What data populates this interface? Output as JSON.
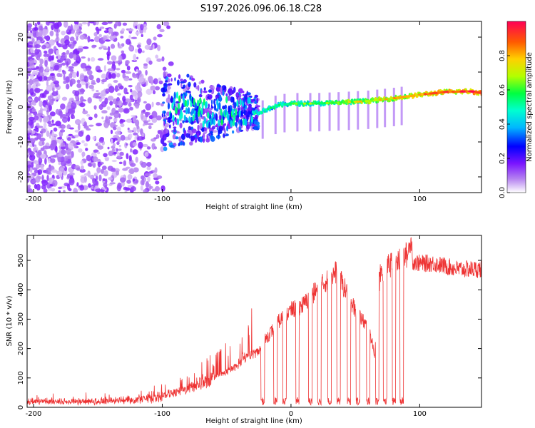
{
  "title": "S197.2026.096.06.18.C28",
  "chart_data": [
    {
      "type": "heatmap",
      "name": "spectrogram",
      "xlabel": "Height of straight line (km)",
      "ylabel": "Frequency (Hz)",
      "xlim": [
        -205,
        148
      ],
      "ylim": [
        -24.5,
        24.5
      ],
      "x_ticks": [
        -200,
        -100,
        0,
        100
      ],
      "y_ticks": [
        -20,
        -10,
        0,
        10,
        20
      ],
      "colorbar": {
        "label": "Normalized spectral amplitude",
        "range": [
          0.0,
          1.0
        ],
        "ticks": [
          0.0,
          0.2,
          0.4,
          0.6,
          0.8
        ],
        "tick_labels": [
          "0.0",
          "0.2",
          "0.4",
          "0.6",
          "0.8"
        ],
        "colormap": [
          "#ffffff",
          "#b583f0",
          "#7a14ff",
          "#0000ff",
          "#00b7ff",
          "#00ffd0",
          "#00ff40",
          "#b4ff00",
          "#ffd000",
          "#ff5a00",
          "#ff0055"
        ]
      },
      "ridge": {
        "description_points_x": [
          -90,
          -60,
          -40,
          -25,
          -10,
          0,
          20,
          40,
          60,
          80,
          100,
          120,
          140,
          148
        ],
        "description_points_y": [
          -0.5,
          -1.5,
          -1,
          -1.5,
          0.5,
          1,
          1,
          1.3,
          1.7,
          2.5,
          3.5,
          4.3,
          4.5,
          4
        ]
      }
    },
    {
      "type": "line",
      "name": "snr",
      "xlabel": "Height of straight line (km)",
      "ylabel": "SNR (10 * v/v)",
      "xlim": [
        -205,
        148
      ],
      "ylim": [
        0,
        585
      ],
      "x_ticks": [
        -200,
        -100,
        0,
        100
      ],
      "y_ticks": [
        0,
        100,
        200,
        300,
        400,
        500
      ],
      "color": "#ee3333",
      "envelope": {
        "x": [
          -205,
          -150,
          -120,
          -100,
          -85,
          -70,
          -60,
          -50,
          -42,
          -35,
          -25,
          -20,
          -15,
          -10,
          0,
          10,
          20,
          30,
          35,
          40,
          50,
          55,
          60,
          62,
          65,
          68,
          70,
          75,
          80,
          85,
          90,
          92,
          100,
          110,
          120,
          130,
          140,
          148
        ],
        "y": [
          22,
          22,
          28,
          38,
          55,
          80,
          100,
          120,
          140,
          170,
          190,
          230,
          260,
          290,
          330,
          350,
          400,
          440,
          460,
          420,
          330,
          300,
          270,
          240,
          180,
          420,
          460,
          480,
          490,
          500,
          520,
          500,
          490,
          490,
          480,
          470,
          470,
          470
        ]
      },
      "dropouts_x": [
        -22,
        -12,
        -5,
        5,
        15,
        22,
        30,
        37,
        45,
        52,
        60,
        67,
        73,
        80,
        86
      ]
    }
  ]
}
